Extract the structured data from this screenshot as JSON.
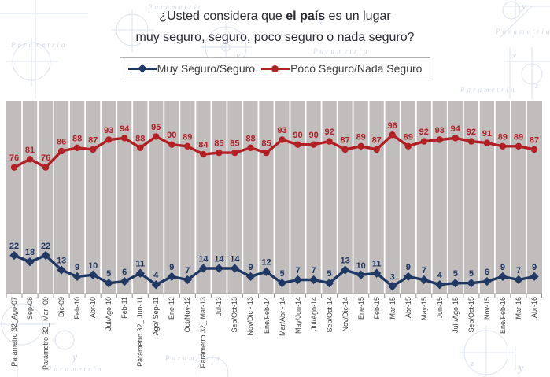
{
  "title": {
    "line1_prefix": "¿Usted considera que ",
    "line1_bold": "el país",
    "line1_suffix": " es un lugar",
    "line2": "muy seguro, seguro, poco seguro o nada seguro?"
  },
  "legend": [
    {
      "label": "Muy Seguro/Seguro",
      "color": "#1f3864",
      "marker": "diamond"
    },
    {
      "label": "Poco Seguro/Nada Seguro",
      "color": "#b22024",
      "marker": "circle"
    }
  ],
  "watermark": {
    "text": "Parametría",
    "line_color": "#dde4ee",
    "text_color": "#cfd8e6"
  },
  "chart_data": {
    "type": "line",
    "title": "¿Usted considera que el país es un lugar muy seguro, seguro, poco seguro o nada seguro?",
    "xlabel": "",
    "ylabel": "",
    "ylim": [
      0,
      100
    ],
    "grid": "vertical-white",
    "plot_bg": "#c1bdbd",
    "gridline_color": "#ffffff",
    "axis_color": "#9c9c9c",
    "tick_color": "#8f8f8f",
    "legend_position": "top",
    "data_labels": true,
    "x_tick_rotation": -90,
    "categories": [
      "Parámetro 32_Ago-07",
      "Sep-08",
      "Parámetro 32_ Mar -09",
      "Dic-09",
      "Feb-10",
      "Abr-10",
      "Jul/Ago-10",
      "Feb-11",
      "Parámetro 32_ Jun-11",
      "Ago/ Sep-11",
      "Ene-12",
      "Oct/Nov-12",
      "Parámetro 32_ Mar-13",
      "Jul-13",
      "Sep/Oct-13",
      "Nov/Dic - 13",
      "Ene/Feb-14",
      "Mar/Abr - 14",
      "May/Jun-14",
      "Jul/Ago-14",
      "Sep/Oct-14",
      "Nov/Dic-14",
      "Ene-15",
      "Feb-15",
      "Mar-15",
      "Abr-15",
      "May-15",
      "Jun-15",
      "Jul-/Ago-15",
      "Sep/Oct-15",
      "Nov-15",
      "Ene/Feb-16",
      "Mar-16",
      "Abr-16"
    ],
    "series": [
      {
        "name": "Muy Seguro/Seguro",
        "color": "#1f3864",
        "marker": "diamond",
        "values": [
          22,
          18,
          22,
          13,
          9,
          10,
          5,
          6,
          11,
          4,
          9,
          7,
          14,
          14,
          14,
          9,
          12,
          5,
          7,
          7,
          5,
          13,
          10,
          11,
          3,
          9,
          7,
          4,
          5,
          5,
          6,
          9,
          7,
          9
        ]
      },
      {
        "name": "Poco Seguro/Nada Seguro",
        "color": "#b22024",
        "marker": "circle",
        "values": [
          76,
          81,
          76,
          86,
          88,
          87,
          93,
          94,
          88,
          95,
          90,
          89,
          84,
          85,
          85,
          88,
          85,
          93,
          90,
          90,
          92,
          87,
          89,
          87,
          96,
          89,
          92,
          93,
          94,
          92,
          91,
          89,
          89,
          87
        ]
      }
    ]
  }
}
